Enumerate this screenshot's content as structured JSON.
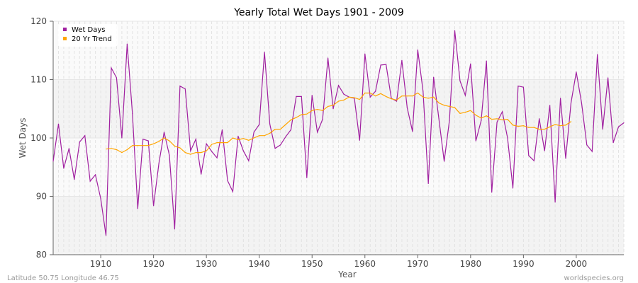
{
  "chart_data": {
    "type": "line",
    "title": "Yearly Total Wet Days 1901 - 2009",
    "xlabel": "Year",
    "ylabel": "Wet Days",
    "xlim": [
      1901,
      2009
    ],
    "ylim": [
      80,
      120
    ],
    "xticks": [
      1910,
      1920,
      1930,
      1940,
      1950,
      1960,
      1970,
      1980,
      1990,
      2000
    ],
    "yticks": [
      80,
      90,
      100,
      110,
      120
    ],
    "grid": true,
    "legend": "top-left",
    "series": [
      {
        "name": "Wet Days",
        "color": "#a020a0",
        "x_start": 1901,
        "values": [
          96.0,
          102.4,
          94.8,
          98.2,
          92.9,
          99.3,
          100.4,
          92.6,
          93.7,
          89.6,
          83.3,
          112.0,
          110.3,
          100.0,
          116.1,
          104.2,
          87.9,
          99.8,
          99.5,
          88.4,
          95.6,
          101.0,
          97.0,
          84.4,
          108.9,
          108.4,
          97.8,
          99.8,
          93.8,
          99.0,
          97.7,
          96.6,
          101.4,
          92.7,
          90.8,
          100.3,
          97.8,
          96.1,
          101.0,
          102.3,
          114.7,
          102.4,
          98.2,
          98.8,
          100.2,
          101.4,
          107.1,
          107.1,
          93.2,
          107.3,
          101.0,
          103.2,
          113.7,
          105.0,
          109.0,
          107.5,
          107.0,
          106.8,
          99.6,
          114.4,
          107.0,
          108.0,
          112.5,
          112.6,
          106.8,
          106.3,
          113.3,
          105.2,
          101.1,
          115.1,
          108.0,
          92.2,
          110.4,
          103.3,
          96.0,
          103.0,
          118.4,
          109.8,
          107.3,
          112.7,
          99.5,
          103.0,
          113.2,
          90.7,
          102.7,
          104.5,
          100.0,
          91.4,
          108.9,
          108.7,
          97.0,
          96.1,
          103.3,
          97.8,
          105.6,
          89.0,
          106.8,
          96.5,
          106.0,
          111.3,
          106.0,
          98.8,
          97.7,
          114.3,
          101.5,
          110.3,
          99.2,
          101.9,
          102.6
        ]
      },
      {
        "name": "20 Yr Trend",
        "color": "#ffa500",
        "x_start": 1911,
        "values": [
          98.1,
          98.2,
          98.0,
          97.5,
          98.0,
          98.7,
          98.7,
          98.7,
          98.7,
          99.0,
          99.4,
          100.0,
          99.5,
          98.6,
          98.3,
          97.5,
          97.2,
          97.5,
          97.5,
          97.8,
          98.9,
          99.2,
          99.2,
          99.2,
          100.0,
          99.7,
          99.9,
          99.6,
          100.0,
          100.4,
          100.4,
          100.8,
          101.5,
          101.5,
          102.3,
          103.1,
          103.5,
          104.0,
          104.1,
          104.7,
          104.9,
          104.7,
          105.4,
          105.6,
          106.3,
          106.5,
          107.0,
          106.9,
          106.6,
          107.7,
          107.7,
          107.2,
          107.6,
          107.1,
          106.7,
          106.5,
          107.2,
          107.2,
          107.2,
          107.7,
          107.0,
          106.8,
          107.0,
          106.0,
          105.6,
          105.4,
          105.2,
          104.2,
          104.4,
          104.7,
          103.9,
          103.4,
          103.8,
          103.2,
          103.3,
          103.1,
          103.2,
          102.2,
          102.0,
          102.1,
          101.8,
          101.8,
          101.5,
          101.5,
          101.9,
          102.3,
          102.1,
          102.2,
          102.8
        ]
      }
    ]
  },
  "footer": {
    "location": "Latitude 50.75 Longitude 46.75",
    "source": "worldspecies.org"
  }
}
